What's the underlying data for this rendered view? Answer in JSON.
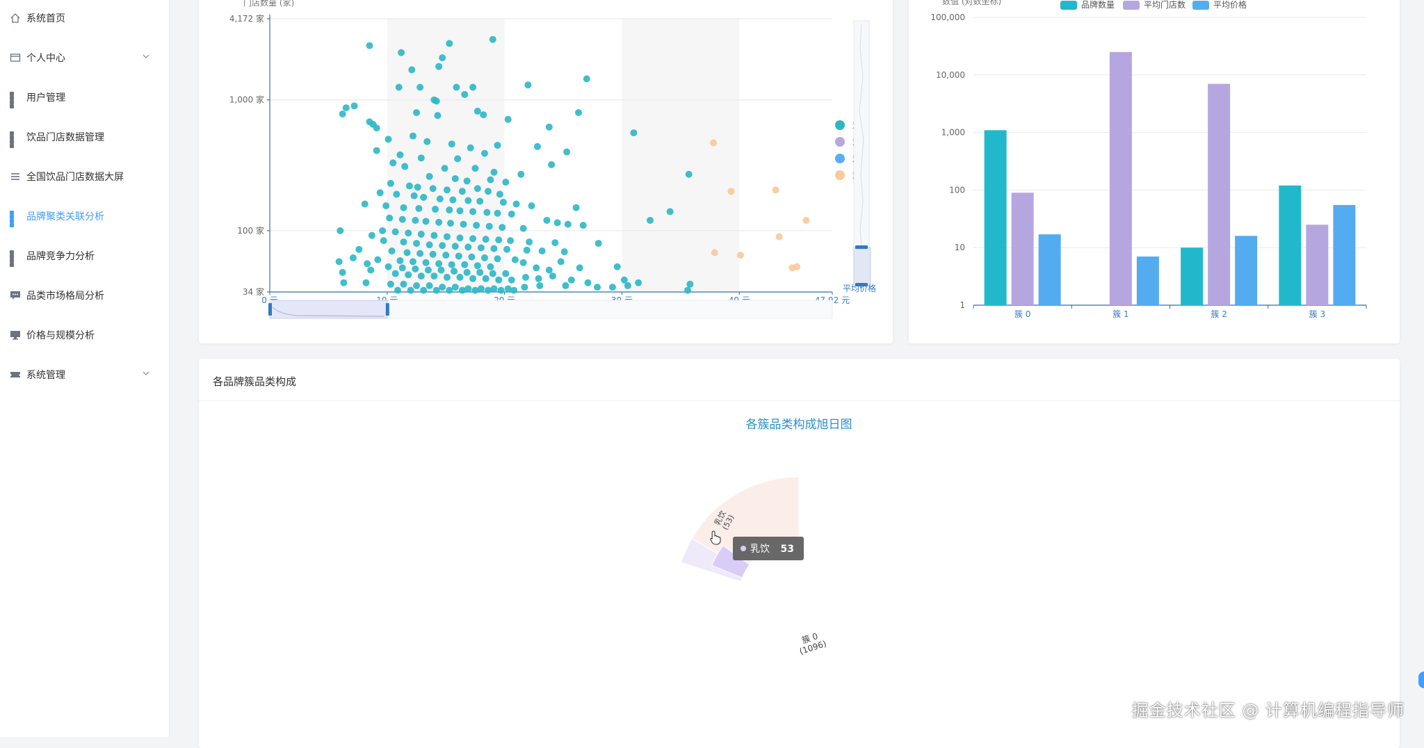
{
  "sidebar": {
    "items": [
      {
        "label": "系统首页",
        "icon": "home-icon"
      },
      {
        "label": "个人中心",
        "icon": "card-icon",
        "expandable": true
      },
      {
        "label": "用户管理",
        "icon": "grid-icon"
      },
      {
        "label": "饮品门店数据管理",
        "icon": "grid-icon"
      },
      {
        "label": "全国饮品门店数据大屏",
        "icon": "list-icon"
      },
      {
        "label": "品牌聚类关联分析",
        "icon": "grid-icon",
        "active": true
      },
      {
        "label": "品牌竞争力分析",
        "icon": "grid-icon"
      },
      {
        "label": "品类市场格局分析",
        "icon": "message-icon"
      },
      {
        "label": "价格与规模分析",
        "icon": "monitor-icon"
      },
      {
        "label": "系统管理",
        "icon": "ticket-icon",
        "expandable": true
      }
    ],
    "active_color": "#409eff"
  },
  "scatter": {
    "y_axis_name": "门店数量 (家)",
    "x_axis_name": "平均价格",
    "y_ticks": [
      "4,172 家",
      "1,000 家",
      "100 家",
      "34 家"
    ],
    "x_ticks": [
      "0 元",
      "10 元",
      "20 元",
      "30 元",
      "40 元",
      "47.92 元"
    ],
    "legend": [
      {
        "name": "簇 0",
        "color": "#2bb7c6"
      },
      {
        "name": "簇 1",
        "color": "#b9a6de"
      },
      {
        "name": "簇 2",
        "color": "#5aaef0"
      },
      {
        "name": "簇 3",
        "color": "#f9c998"
      }
    ]
  },
  "chart_data": [
    {
      "type": "scatter",
      "title": "",
      "xlabel": "平均价格",
      "ylabel": "门店数量 (家)",
      "xlim": [
        0,
        47.92
      ],
      "ylim": [
        34,
        4172
      ],
      "y_scale": "log",
      "legend_position": "right",
      "series": [
        {
          "name": "簇 0",
          "color": "#2bb7c6",
          "points": [
            [
              8.5,
              2600
            ],
            [
              11.2,
              2300
            ],
            [
              15.3,
              2700
            ],
            [
              19,
              2900
            ],
            [
              14.7,
              2100
            ],
            [
              14.4,
              1800
            ],
            [
              12.1,
              1700
            ],
            [
              27,
              1450
            ],
            [
              11,
              1250
            ],
            [
              12.8,
              1250
            ],
            [
              15.9,
              1250
            ],
            [
              17.3,
              1250
            ],
            [
              22,
              1300
            ],
            [
              16.6,
              1100
            ],
            [
              14,
              1000
            ],
            [
              14.2,
              980
            ],
            [
              6.5,
              870
            ],
            [
              7.2,
              900
            ],
            [
              6.2,
              780
            ],
            [
              8.5,
              680
            ],
            [
              8.8,
              650
            ],
            [
              9.1,
              610
            ],
            [
              12.5,
              800
            ],
            [
              14.3,
              760
            ],
            [
              17.7,
              820
            ],
            [
              18.2,
              770
            ],
            [
              20.3,
              710
            ],
            [
              26.3,
              800
            ],
            [
              23.8,
              620
            ],
            [
              31,
              560
            ],
            [
              12.2,
              530
            ],
            [
              10.1,
              500
            ],
            [
              13.4,
              480
            ],
            [
              15.5,
              460
            ],
            [
              17.1,
              430
            ],
            [
              19.4,
              450
            ],
            [
              22.8,
              440
            ],
            [
              25.3,
              400
            ],
            [
              9.1,
              410
            ],
            [
              11.1,
              380
            ],
            [
              12.9,
              360
            ],
            [
              16,
              355
            ],
            [
              18.3,
              390
            ],
            [
              24,
              320
            ],
            [
              35.7,
              270
            ],
            [
              10.5,
              330
            ],
            [
              11.5,
              310
            ],
            [
              14.9,
              300
            ],
            [
              17.5,
              300
            ],
            [
              19.1,
              280
            ],
            [
              21.4,
              270
            ],
            [
              13.6,
              260
            ],
            [
              15.8,
              250
            ],
            [
              16.8,
              240
            ],
            [
              18.8,
              245
            ],
            [
              20.1,
              235
            ],
            [
              10.3,
              230
            ],
            [
              11.9,
              220
            ],
            [
              12.6,
              215
            ],
            [
              13.9,
              210
            ],
            [
              15.1,
              205
            ],
            [
              16.4,
              200
            ],
            [
              17.7,
              210
            ],
            [
              18.6,
              200
            ],
            [
              19.6,
              190
            ],
            [
              9.4,
              195
            ],
            [
              10.8,
              190
            ],
            [
              12.3,
              185
            ],
            [
              13.1,
              180
            ],
            [
              14.5,
              175
            ],
            [
              15.6,
              172
            ],
            [
              16.9,
              170
            ],
            [
              17.9,
              168
            ],
            [
              19.9,
              165
            ],
            [
              21,
              160
            ],
            [
              22.3,
              155
            ],
            [
              26.1,
              150
            ],
            [
              8.1,
              160
            ],
            [
              9.9,
              155
            ],
            [
              11.4,
              150
            ],
            [
              12.7,
              148
            ],
            [
              14.1,
              146
            ],
            [
              15.3,
              144
            ],
            [
              16.2,
              142
            ],
            [
              17.3,
              140
            ],
            [
              18.5,
              138
            ],
            [
              19.4,
              136
            ],
            [
              20.6,
              134
            ],
            [
              34.1,
              140
            ],
            [
              32.4,
              120
            ],
            [
              23.6,
              120
            ],
            [
              24.5,
              115
            ],
            [
              25.4,
              112
            ],
            [
              26.7,
              110
            ],
            [
              10.2,
              125
            ],
            [
              11.3,
              122
            ],
            [
              12.4,
              120
            ],
            [
              13.3,
              118
            ],
            [
              14.4,
              116
            ],
            [
              15.4,
              114
            ],
            [
              16.5,
              112
            ],
            [
              17.6,
              110
            ],
            [
              18.7,
              108
            ],
            [
              19.8,
              106
            ],
            [
              21.6,
              104
            ],
            [
              6,
              100
            ],
            [
              9.6,
              100
            ],
            [
              10.7,
              98
            ],
            [
              11.8,
              96
            ],
            [
              12.9,
              94
            ],
            [
              14,
              92
            ],
            [
              15.1,
              90
            ],
            [
              16.2,
              88
            ],
            [
              17.3,
              87
            ],
            [
              18.4,
              86
            ],
            [
              19.5,
              85
            ],
            [
              20.5,
              84
            ],
            [
              22.1,
              82
            ],
            [
              24.3,
              81
            ],
            [
              28,
              80
            ],
            [
              8.7,
              92
            ],
            [
              9.7,
              84
            ],
            [
              11.4,
              82
            ],
            [
              12.5,
              80
            ],
            [
              13.6,
              78
            ],
            [
              14.7,
              77
            ],
            [
              15.8,
              76
            ],
            [
              16.9,
              75
            ],
            [
              18,
              74
            ],
            [
              19.1,
              73
            ],
            [
              20.2,
              72
            ],
            [
              21.9,
              71
            ],
            [
              23.2,
              70
            ],
            [
              25.1,
              69
            ],
            [
              7.6,
              72
            ],
            [
              10.4,
              70
            ],
            [
              11.7,
              68
            ],
            [
              12.8,
              67
            ],
            [
              13.9,
              66
            ],
            [
              15,
              65
            ],
            [
              16.1,
              64
            ],
            [
              17.2,
              63
            ],
            [
              18.3,
              62
            ],
            [
              19.4,
              61
            ],
            [
              20.9,
              60
            ],
            [
              7.1,
              62
            ],
            [
              9.2,
              60
            ],
            [
              11.1,
              59
            ],
            [
              12.2,
              58
            ],
            [
              13.3,
              57
            ],
            [
              14.4,
              56
            ],
            [
              15.5,
              55
            ],
            [
              16.6,
              55
            ],
            [
              17.7,
              54
            ],
            [
              18.8,
              53
            ],
            [
              21.6,
              57
            ],
            [
              24.8,
              58
            ],
            [
              5.9,
              58
            ],
            [
              8.3,
              56
            ],
            [
              10.1,
              53
            ],
            [
              11.3,
              52
            ],
            [
              12.4,
              51
            ],
            [
              13.5,
              50
            ],
            [
              14.6,
              50
            ],
            [
              15.7,
              49
            ],
            [
              16.8,
              48
            ],
            [
              17.9,
              48
            ],
            [
              19,
              47
            ],
            [
              20.1,
              47
            ],
            [
              22.7,
              52
            ],
            [
              23.8,
              50
            ],
            [
              26.4,
              52
            ],
            [
              29.6,
              53
            ],
            [
              6.2,
              48
            ],
            [
              8.6,
              50
            ],
            [
              10.7,
              47
            ],
            [
              11.8,
              46
            ],
            [
              12.9,
              45
            ],
            [
              14,
              45
            ],
            [
              15.1,
              44
            ],
            [
              16.2,
              44
            ],
            [
              17.3,
              43
            ],
            [
              18.4,
              43
            ],
            [
              19.5,
              42
            ],
            [
              20.6,
              42
            ],
            [
              21.8,
              44
            ],
            [
              22.9,
              43
            ],
            [
              24.1,
              45
            ],
            [
              25.7,
              42
            ],
            [
              27.1,
              40
            ],
            [
              30.2,
              42
            ],
            [
              31.4,
              40
            ],
            [
              35.8,
              39
            ],
            [
              6.3,
              40
            ],
            [
              8.2,
              40
            ],
            [
              10.3,
              39
            ],
            [
              11.4,
              39
            ],
            [
              12.5,
              38
            ],
            [
              13.6,
              38
            ],
            [
              14.7,
              37
            ],
            [
              15.8,
              37
            ],
            [
              16.9,
              36
            ],
            [
              18,
              36
            ],
            [
              19.1,
              36
            ],
            [
              20.3,
              36
            ],
            [
              21.7,
              37
            ],
            [
              23,
              38
            ],
            [
              25.2,
              38
            ],
            [
              27.9,
              37
            ],
            [
              29.2,
              37
            ],
            [
              30.5,
              38
            ],
            [
              10.9,
              35
            ],
            [
              12,
              35
            ],
            [
              13.1,
              35
            ],
            [
              14.2,
              35
            ],
            [
              15.3,
              35
            ],
            [
              16.4,
              35
            ],
            [
              17.5,
              35
            ],
            [
              18.6,
              35
            ],
            [
              19.7,
              35
            ],
            [
              20.8,
              35
            ],
            [
              35.6,
              35
            ]
          ]
        },
        {
          "name": "簇 3",
          "color": "#f9c998",
          "points": [
            [
              37.8,
              470
            ],
            [
              39.3,
              200
            ],
            [
              43.1,
              205
            ],
            [
              45.7,
              120
            ],
            [
              43.4,
              90
            ],
            [
              37.9,
              68
            ],
            [
              40.1,
              65
            ],
            [
              44.5,
              52
            ],
            [
              44.9,
              53
            ]
          ]
        }
      ]
    },
    {
      "type": "bar",
      "title": "",
      "ylabel": "数值 (对数坐标)",
      "y_scale": "log",
      "ylim": [
        1,
        100000
      ],
      "legend_position": "top",
      "categories": [
        "簇 0",
        "簇 1",
        "簇 2",
        "簇 3"
      ],
      "y_ticks": [
        "100,000",
        "10,000",
        "1,000",
        "100",
        "10",
        "1"
      ],
      "series": [
        {
          "name": "品牌数量",
          "color": "#22b8cc",
          "values": [
            1096,
            0,
            10,
            120
          ]
        },
        {
          "name": "平均门店数",
          "color": "#b6a6e0",
          "values": [
            90,
            25000,
            7000,
            25
          ]
        },
        {
          "name": "平均价格",
          "color": "#54acf0",
          "values": [
            17,
            7,
            16,
            55
          ]
        }
      ]
    },
    {
      "type": "sunburst",
      "title": "各簇品类构成旭日图",
      "inner_label": "簇 0",
      "inner_value_label": "(1096)",
      "segment_label": "乳饮",
      "segment_value_label": "(53)"
    }
  ],
  "bar_legend": [
    {
      "name": "品牌数量",
      "color": "#22b8cc"
    },
    {
      "name": "平均门店数",
      "color": "#b6a6e0"
    },
    {
      "name": "平均价格",
      "color": "#54acf0"
    }
  ],
  "composition_card": {
    "title": "各品牌簇品类构成"
  },
  "tooltip": {
    "name": "乳饮",
    "value": "53"
  },
  "watermark": "掘金技术社区 @ 计算机编程指导师"
}
